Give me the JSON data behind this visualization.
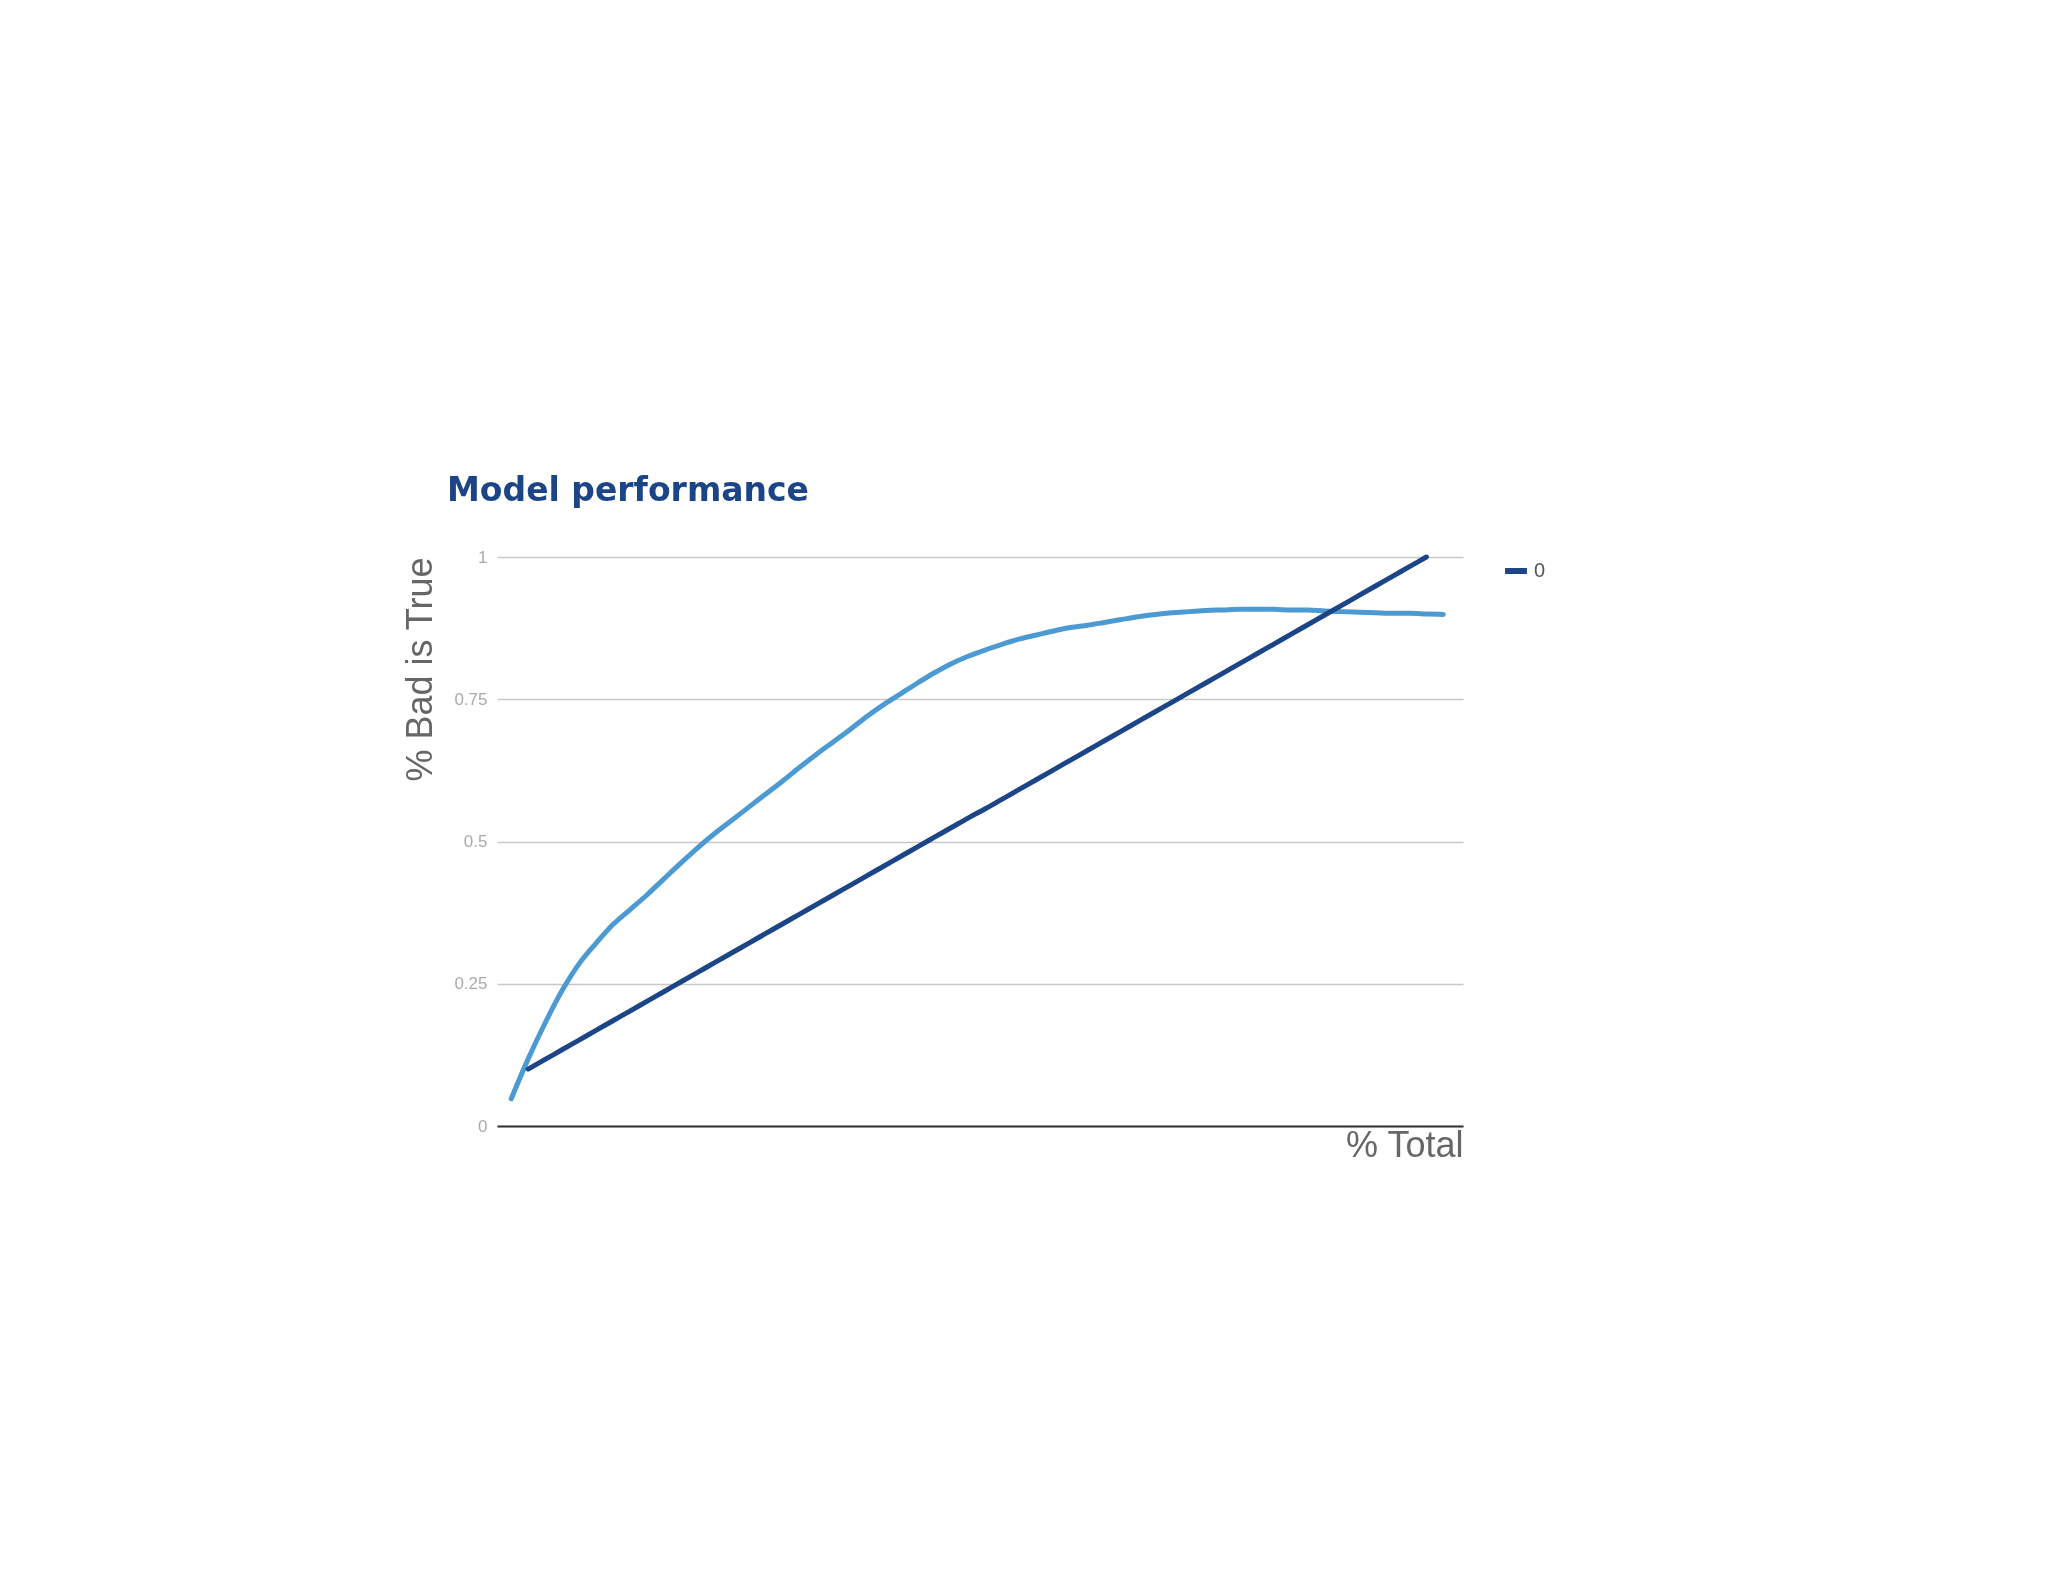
{
  "chart_data": {
    "type": "line",
    "title": "Model performance",
    "xlabel": "% Total",
    "ylabel": "% Bad is True",
    "categories": [
      null,
      null,
      null,
      null,
      null,
      null,
      null,
      null,
      null,
      null,
      null,
      null,
      null,
      null,
      null,
      null,
      null,
      null,
      null,
      null,
      null,
      null,
      null,
      null,
      null,
      null,
      null,
      null,
      null,
      null,
      null,
      null,
      null,
      null,
      null,
      null,
      null,
      null,
      null,
      null,
      null,
      null,
      null,
      null,
      null,
      null,
      null,
      null,
      null,
      null,
      null,
      null,
      null,
      null,
      null,
      null
    ],
    "series": [
      {
        "color": "#4c9ad3",
        "values": [
          0.048,
          0.118,
          0.181,
          0.238,
          0.285,
          0.321,
          0.354,
          0.38,
          0.406,
          0.434,
          0.462,
          0.489,
          0.514,
          0.537,
          0.56,
          0.583,
          0.606,
          0.63,
          0.653,
          0.675,
          0.697,
          0.72,
          0.741,
          0.76,
          0.779,
          0.797,
          0.813,
          0.826,
          0.837,
          0.847,
          0.856,
          0.863,
          0.87,
          0.876,
          0.88,
          0.885,
          0.89,
          0.895,
          0.899,
          0.902,
          0.904,
          0.906,
          0.907,
          0.908,
          0.908,
          0.908,
          0.907,
          0.907,
          0.905,
          0.904,
          0.903,
          0.902,
          0.901,
          0.901,
          0.9,
          0.899
        ]
      },
      {
        "name": "0",
        "color": "#1c4587",
        "values": [
          null,
          0.1,
          0.117,
          0.134,
          0.151,
          0.168,
          0.185,
          0.202,
          0.219,
          0.236,
          0.253,
          0.27,
          0.287,
          0.304,
          0.321,
          0.338,
          0.355,
          0.372,
          0.389,
          0.406,
          0.423,
          0.44,
          0.457,
          0.474,
          0.491,
          0.508,
          0.525,
          0.542,
          0.558,
          0.575,
          0.592,
          0.609,
          0.626,
          0.643,
          0.66,
          0.677,
          0.694,
          0.711,
          0.728,
          0.745,
          0.762,
          0.779,
          0.796,
          0.813,
          0.83,
          0.847,
          0.864,
          0.881,
          0.898,
          0.915,
          0.932,
          0.949,
          0.966,
          0.983,
          1.0,
          null
        ]
      }
    ],
    "ylim": [
      0,
      1
    ],
    "yticks": [
      0,
      0.25,
      0.5,
      0.75,
      1
    ],
    "grid": "y",
    "legend": "right",
    "tick_labels": "y"
  }
}
